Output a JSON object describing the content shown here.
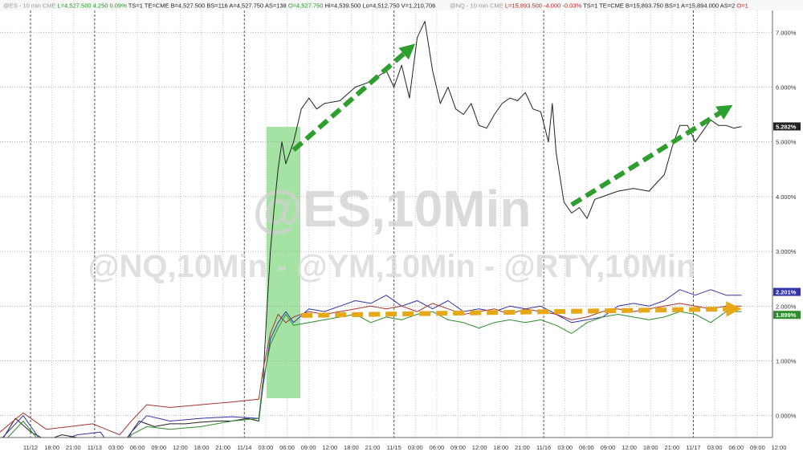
{
  "header": {
    "left": [
      {
        "text": "@ES - 10 min  CME",
        "color": "#9a9a9a"
      },
      {
        "text": "L=4,527.500",
        "color": "#1a9a1a"
      },
      {
        "text": "4.250",
        "color": "#1a9a1a"
      },
      {
        "text": "0.09%",
        "color": "#1a9a1a"
      },
      {
        "text": "TS=1",
        "color": "#222222"
      },
      {
        "text": "TE=CME",
        "color": "#222222"
      },
      {
        "text": "B=4,527.500",
        "color": "#222222"
      },
      {
        "text": "BS=116",
        "color": "#222222"
      },
      {
        "text": "A=4,527.750",
        "color": "#222222"
      },
      {
        "text": "AS=138",
        "color": "#222222"
      },
      {
        "text": "O=4,527.750",
        "color": "#1a9a1a"
      },
      {
        "text": "Hi=4,539.500",
        "color": "#222222"
      },
      {
        "text": "Lo=4,512.750",
        "color": "#222222"
      },
      {
        "text": "V=1,210,706",
        "color": "#222222"
      }
    ],
    "right": [
      {
        "text": "@NQ - 10 min  CME",
        "color": "#9a9a9a"
      },
      {
        "text": "L=15,893.500",
        "color": "#cc2222"
      },
      {
        "text": "-4.000",
        "color": "#cc2222"
      },
      {
        "text": "-0.03%",
        "color": "#cc2222"
      },
      {
        "text": "TS=1",
        "color": "#222222"
      },
      {
        "text": "TE=CME",
        "color": "#222222"
      },
      {
        "text": "B=15,893.750",
        "color": "#222222"
      },
      {
        "text": "BS=1",
        "color": "#222222"
      },
      {
        "text": "A=15,894.000",
        "color": "#222222"
      },
      {
        "text": "AS=2",
        "color": "#222222"
      },
      {
        "text": "O=1",
        "color": "#cc2222"
      }
    ]
  },
  "watermark": {
    "line1": "@ES,10Min",
    "line2": "@NQ,10Min - @YM,10Min - @RTY,10Min"
  },
  "chart_data": {
    "type": "line",
    "title": "",
    "xlabel": "",
    "ylabel": "",
    "y_unit": "percent",
    "ylim": [
      -0.4,
      7.4
    ],
    "y_ticks": [
      "0.000%",
      "1.000%",
      "2.000%",
      "3.000%",
      "4.000%",
      "5.000%",
      "6.000%",
      "7.000%"
    ],
    "x_ticks": [
      "11/12",
      "18:00",
      "21:00",
      "11/13",
      "03:00",
      "06:00",
      "09:00",
      "12:00",
      "18:00",
      "21:00",
      "11/14",
      "03:00",
      "06:00",
      "09:00",
      "12:00",
      "18:00",
      "21:00",
      "11/15",
      "03:00",
      "06:00",
      "09:00",
      "12:00",
      "18:00",
      "21:00",
      "11/16",
      "03:00",
      "06:00",
      "09:00",
      "12:00",
      "18:00",
      "21:00",
      "11/17",
      "03:00",
      "06:00",
      "09:00",
      "12:00"
    ],
    "grid": true,
    "last_value_labels": [
      {
        "text": "5.282%",
        "value": 5.282,
        "color": "#222222"
      },
      {
        "text": "2.201%",
        "value": 2.201,
        "color": "#3333aa"
      },
      {
        "text": "1.899%",
        "value": 1.899,
        "color": "#2e8b2e"
      }
    ],
    "highlight_band": {
      "x_from": "11/14 05:00",
      "x_to": "11/14 09:00",
      "color": "#8fdc8f"
    },
    "arrows": [
      {
        "from": [
          0.38,
          4.85
        ],
        "to": [
          0.53,
          6.7
        ],
        "color": "#2e9e2e"
      },
      {
        "from": [
          0.74,
          3.85
        ],
        "to": [
          0.94,
          5.6
        ],
        "color": "#2e9e2e"
      },
      {
        "from": [
          0.39,
          1.83
        ],
        "to": [
          0.95,
          1.95
        ],
        "color": "#e6a817"
      }
    ],
    "series": [
      {
        "color": "#222222",
        "values": [
          [
            0.0,
            -0.5
          ],
          [
            0.02,
            -0.05
          ],
          [
            0.04,
            -0.3
          ],
          [
            0.06,
            -0.45
          ],
          [
            0.08,
            -0.35
          ],
          [
            0.1,
            -0.4
          ],
          [
            0.12,
            -0.45
          ],
          [
            0.14,
            -0.55
          ],
          [
            0.155,
            -0.7
          ],
          [
            0.165,
            -0.4
          ],
          [
            0.18,
            -0.1
          ],
          [
            0.2,
            -0.2
          ],
          [
            0.22,
            -0.15
          ],
          [
            0.24,
            -0.15
          ],
          [
            0.26,
            -0.12
          ],
          [
            0.28,
            -0.1
          ],
          [
            0.3,
            -0.1
          ],
          [
            0.32,
            -0.05
          ],
          [
            0.335,
            -0.1
          ],
          [
            0.34,
            0.5
          ],
          [
            0.345,
            1.8
          ],
          [
            0.35,
            3.0
          ],
          [
            0.355,
            3.8
          ],
          [
            0.36,
            4.5
          ],
          [
            0.365,
            5.0
          ],
          [
            0.37,
            4.6
          ],
          [
            0.375,
            4.8
          ],
          [
            0.38,
            5.0
          ],
          [
            0.39,
            5.6
          ],
          [
            0.4,
            5.8
          ],
          [
            0.41,
            5.6
          ],
          [
            0.42,
            5.7
          ],
          [
            0.44,
            5.75
          ],
          [
            0.46,
            6.0
          ],
          [
            0.48,
            6.1
          ],
          [
            0.5,
            6.3
          ],
          [
            0.51,
            6.0
          ],
          [
            0.52,
            6.4
          ],
          [
            0.53,
            5.8
          ],
          [
            0.54,
            6.9
          ],
          [
            0.55,
            7.2
          ],
          [
            0.56,
            6.3
          ],
          [
            0.57,
            5.7
          ],
          [
            0.58,
            6.0
          ],
          [
            0.59,
            5.6
          ],
          [
            0.6,
            5.5
          ],
          [
            0.61,
            5.7
          ],
          [
            0.62,
            5.3
          ],
          [
            0.63,
            5.25
          ],
          [
            0.64,
            5.5
          ],
          [
            0.65,
            5.7
          ],
          [
            0.66,
            5.8
          ],
          [
            0.67,
            5.75
          ],
          [
            0.68,
            5.9
          ],
          [
            0.69,
            5.6
          ],
          [
            0.7,
            5.55
          ],
          [
            0.71,
            5.0
          ],
          [
            0.715,
            5.7
          ],
          [
            0.72,
            4.8
          ],
          [
            0.73,
            3.9
          ],
          [
            0.74,
            3.7
          ],
          [
            0.75,
            3.8
          ],
          [
            0.76,
            3.6
          ],
          [
            0.77,
            3.95
          ],
          [
            0.78,
            4.0
          ],
          [
            0.8,
            4.1
          ],
          [
            0.82,
            4.15
          ],
          [
            0.84,
            4.1
          ],
          [
            0.86,
            4.4
          ],
          [
            0.87,
            4.9
          ],
          [
            0.88,
            5.3
          ],
          [
            0.89,
            5.3
          ],
          [
            0.9,
            5.0
          ],
          [
            0.91,
            5.2
          ],
          [
            0.92,
            5.4
          ],
          [
            0.93,
            5.3
          ],
          [
            0.94,
            5.3
          ],
          [
            0.95,
            5.25
          ],
          [
            0.96,
            5.28
          ]
        ]
      },
      {
        "color": "#3333aa",
        "values": [
          [
            0.0,
            -0.45
          ],
          [
            0.03,
            0.0
          ],
          [
            0.05,
            -0.4
          ],
          [
            0.08,
            -0.45
          ],
          [
            0.1,
            -0.35
          ],
          [
            0.13,
            -0.3
          ],
          [
            0.155,
            -0.8
          ],
          [
            0.17,
            -0.3
          ],
          [
            0.19,
            0.0
          ],
          [
            0.22,
            -0.1
          ],
          [
            0.26,
            -0.05
          ],
          [
            0.3,
            -0.02
          ],
          [
            0.335,
            -0.05
          ],
          [
            0.34,
            0.5
          ],
          [
            0.35,
            1.4
          ],
          [
            0.36,
            1.7
          ],
          [
            0.37,
            1.9
          ],
          [
            0.38,
            1.7
          ],
          [
            0.4,
            1.95
          ],
          [
            0.42,
            1.9
          ],
          [
            0.44,
            2.0
          ],
          [
            0.46,
            2.1
          ],
          [
            0.48,
            2.05
          ],
          [
            0.5,
            2.2
          ],
          [
            0.52,
            2.0
          ],
          [
            0.54,
            2.1
          ],
          [
            0.56,
            1.95
          ],
          [
            0.58,
            2.1
          ],
          [
            0.6,
            1.9
          ],
          [
            0.62,
            1.95
          ],
          [
            0.64,
            1.9
          ],
          [
            0.66,
            2.0
          ],
          [
            0.68,
            1.95
          ],
          [
            0.7,
            2.0
          ],
          [
            0.72,
            1.85
          ],
          [
            0.74,
            1.7
          ],
          [
            0.76,
            1.75
          ],
          [
            0.78,
            1.8
          ],
          [
            0.8,
            2.0
          ],
          [
            0.82,
            2.05
          ],
          [
            0.84,
            2.0
          ],
          [
            0.86,
            2.1
          ],
          [
            0.88,
            2.3
          ],
          [
            0.9,
            2.2
          ],
          [
            0.92,
            2.3
          ],
          [
            0.94,
            2.2
          ],
          [
            0.96,
            2.2
          ]
        ]
      },
      {
        "color": "#aa3333",
        "values": [
          [
            0.0,
            -0.3
          ],
          [
            0.03,
            0.05
          ],
          [
            0.06,
            -0.25
          ],
          [
            0.09,
            -0.2
          ],
          [
            0.12,
            -0.15
          ],
          [
            0.155,
            -0.35
          ],
          [
            0.17,
            -0.1
          ],
          [
            0.19,
            0.2
          ],
          [
            0.22,
            0.15
          ],
          [
            0.26,
            0.2
          ],
          [
            0.3,
            0.25
          ],
          [
            0.335,
            0.3
          ],
          [
            0.34,
            0.8
          ],
          [
            0.35,
            1.5
          ],
          [
            0.36,
            1.85
          ],
          [
            0.37,
            1.7
          ],
          [
            0.38,
            1.8
          ],
          [
            0.4,
            1.9
          ],
          [
            0.42,
            1.85
          ],
          [
            0.44,
            1.9
          ],
          [
            0.46,
            1.95
          ],
          [
            0.48,
            2.0
          ],
          [
            0.5,
            1.95
          ],
          [
            0.52,
            2.0
          ],
          [
            0.54,
            1.9
          ],
          [
            0.56,
            2.05
          ],
          [
            0.58,
            1.95
          ],
          [
            0.6,
            1.85
          ],
          [
            0.62,
            1.9
          ],
          [
            0.64,
            1.95
          ],
          [
            0.66,
            1.85
          ],
          [
            0.68,
            1.95
          ],
          [
            0.7,
            1.9
          ],
          [
            0.72,
            1.85
          ],
          [
            0.74,
            1.75
          ],
          [
            0.76,
            1.8
          ],
          [
            0.78,
            1.9
          ],
          [
            0.8,
            1.95
          ],
          [
            0.82,
            1.9
          ],
          [
            0.84,
            1.95
          ],
          [
            0.86,
            2.0
          ],
          [
            0.88,
            2.05
          ],
          [
            0.9,
            2.0
          ],
          [
            0.92,
            1.95
          ],
          [
            0.94,
            2.0
          ],
          [
            0.96,
            2.0
          ]
        ]
      },
      {
        "color": "#2e8b2e",
        "values": [
          [
            0.0,
            -0.55
          ],
          [
            0.03,
            -0.1
          ],
          [
            0.05,
            -0.45
          ],
          [
            0.08,
            -0.6
          ],
          [
            0.1,
            -0.5
          ],
          [
            0.13,
            -0.45
          ],
          [
            0.155,
            -0.9
          ],
          [
            0.17,
            -0.35
          ],
          [
            0.19,
            -0.2
          ],
          [
            0.22,
            -0.25
          ],
          [
            0.26,
            -0.2
          ],
          [
            0.3,
            -0.1
          ],
          [
            0.335,
            -0.05
          ],
          [
            0.34,
            0.6
          ],
          [
            0.35,
            1.3
          ],
          [
            0.36,
            1.6
          ],
          [
            0.37,
            1.85
          ],
          [
            0.38,
            1.65
          ],
          [
            0.4,
            1.7
          ],
          [
            0.42,
            1.75
          ],
          [
            0.44,
            1.8
          ],
          [
            0.46,
            1.85
          ],
          [
            0.48,
            1.7
          ],
          [
            0.5,
            1.8
          ],
          [
            0.52,
            1.75
          ],
          [
            0.54,
            1.85
          ],
          [
            0.56,
            1.9
          ],
          [
            0.58,
            1.75
          ],
          [
            0.6,
            1.7
          ],
          [
            0.62,
            1.6
          ],
          [
            0.64,
            1.7
          ],
          [
            0.66,
            1.75
          ],
          [
            0.68,
            1.7
          ],
          [
            0.7,
            1.75
          ],
          [
            0.72,
            1.65
          ],
          [
            0.74,
            1.5
          ],
          [
            0.76,
            1.7
          ],
          [
            0.78,
            1.8
          ],
          [
            0.8,
            1.85
          ],
          [
            0.82,
            1.8
          ],
          [
            0.84,
            1.75
          ],
          [
            0.86,
            1.8
          ],
          [
            0.88,
            1.9
          ],
          [
            0.9,
            1.85
          ],
          [
            0.92,
            1.7
          ],
          [
            0.94,
            1.9
          ],
          [
            0.96,
            1.9
          ]
        ]
      }
    ]
  }
}
